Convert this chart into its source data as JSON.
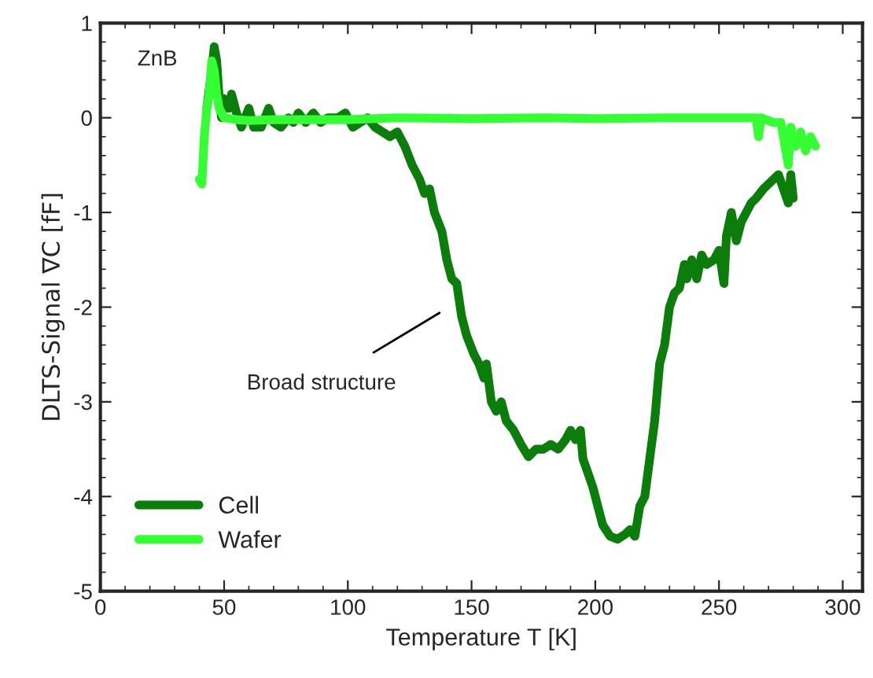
{
  "chart_data": {
    "type": "line",
    "xlabel": "Temperature T [K]",
    "ylabel": "DLTS-Signal ∇C [fF]",
    "xlim": [
      0,
      308
    ],
    "ylim": [
      -5,
      1
    ],
    "xticks": [
      0,
      50,
      100,
      150,
      200,
      250,
      300
    ],
    "yticks": [
      -5,
      -4,
      -3,
      -2,
      -1,
      0,
      1
    ],
    "grid": false,
    "legend": "bottom left",
    "line_style": "solid",
    "marker": "none",
    "annotations": [
      {
        "text": "ZnB",
        "x": 46,
        "y": 0.75
      },
      "Broad structure"
    ],
    "series": [
      {
        "name": "Cell",
        "color": "#0a7d0a",
        "x": [
          43,
          45,
          46,
          47,
          48,
          49,
          50,
          52,
          53,
          55,
          57,
          60,
          62,
          65,
          68,
          70,
          73,
          76,
          78,
          80,
          83,
          86,
          89,
          92,
          96,
          99,
          102,
          105,
          108,
          111,
          114,
          117,
          120,
          123,
          126,
          129,
          131,
          133,
          135,
          138,
          140,
          142,
          144,
          146,
          148,
          151,
          153,
          155,
          156,
          158,
          160,
          162,
          164,
          167,
          170,
          173,
          176,
          179,
          182,
          185,
          188,
          190,
          192,
          194,
          195,
          197,
          199,
          201,
          203,
          206,
          209,
          212,
          214,
          216,
          218,
          220,
          222,
          224,
          226,
          228,
          230,
          232,
          234,
          236,
          237,
          239,
          241,
          243,
          245,
          248,
          250,
          252,
          253,
          255,
          257,
          259,
          261,
          263,
          265,
          268,
          270,
          272,
          274,
          276,
          278,
          279,
          280
        ],
        "values": [
          0.1,
          0.5,
          0.75,
          0.6,
          0.2,
          0.0,
          0.2,
          0.1,
          0.25,
          0.05,
          -0.1,
          0.1,
          -0.1,
          -0.1,
          0.1,
          -0.05,
          -0.1,
          0.0,
          -0.05,
          0.05,
          -0.05,
          0.05,
          -0.05,
          0.0,
          0.0,
          0.05,
          -0.1,
          -0.05,
          0.0,
          -0.1,
          -0.15,
          -0.2,
          -0.15,
          -0.3,
          -0.5,
          -0.65,
          -0.8,
          -0.75,
          -1.0,
          -1.2,
          -1.5,
          -1.7,
          -1.75,
          -2.1,
          -2.3,
          -2.5,
          -2.6,
          -2.75,
          -2.6,
          -3.0,
          -3.1,
          -3.0,
          -3.2,
          -3.3,
          -3.45,
          -3.58,
          -3.5,
          -3.5,
          -3.45,
          -3.5,
          -3.4,
          -3.3,
          -3.4,
          -3.3,
          -3.6,
          -3.75,
          -3.9,
          -4.1,
          -4.3,
          -4.42,
          -4.45,
          -4.4,
          -4.35,
          -4.42,
          -4.1,
          -4.0,
          -3.6,
          -3.2,
          -2.6,
          -2.4,
          -2.0,
          -1.85,
          -1.8,
          -1.55,
          -1.7,
          -1.5,
          -1.7,
          -1.45,
          -1.55,
          -1.5,
          -1.4,
          -1.75,
          -1.25,
          -1.0,
          -1.3,
          -1.1,
          -1.0,
          -0.9,
          -0.85,
          -0.75,
          -0.7,
          -0.65,
          -0.6,
          -0.75,
          -0.9,
          -0.6,
          -0.85
        ]
      },
      {
        "name": "Wafer",
        "color": "#33ff33",
        "x": [
          40,
          41,
          42,
          43,
          44,
          45,
          46,
          47,
          48,
          50,
          55,
          60,
          70,
          80,
          100,
          120,
          150,
          180,
          200,
          230,
          260,
          265,
          266,
          267,
          272,
          275,
          277,
          278,
          279,
          281,
          283,
          285,
          287,
          289
        ],
        "values": [
          -0.65,
          -0.7,
          -0.2,
          0.1,
          0.25,
          0.6,
          0.5,
          0.25,
          0.1,
          0.0,
          -0.02,
          -0.03,
          -0.02,
          -0.02,
          -0.02,
          0.0,
          -0.01,
          0.0,
          -0.01,
          0.0,
          0.0,
          0.0,
          -0.2,
          0.0,
          -0.05,
          -0.05,
          -0.35,
          -0.5,
          -0.1,
          -0.3,
          -0.15,
          -0.35,
          -0.2,
          -0.3
        ]
      }
    ]
  }
}
